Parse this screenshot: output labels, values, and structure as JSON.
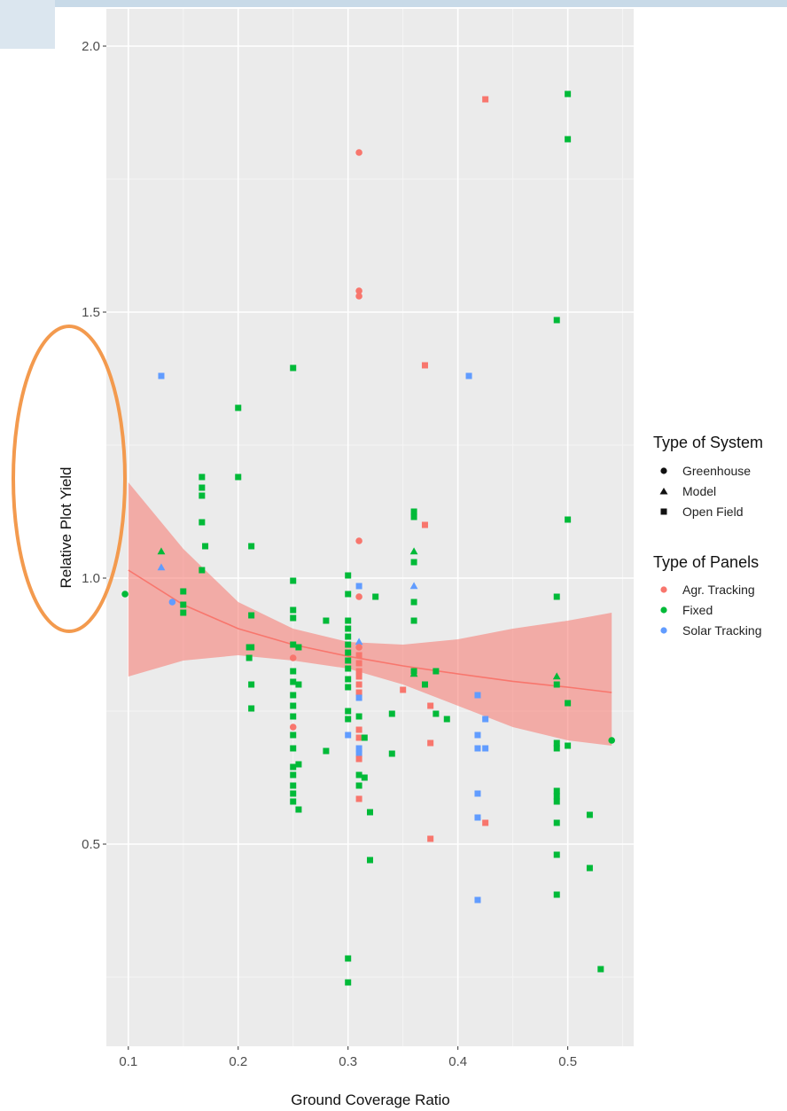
{
  "chart_data": {
    "type": "scatter",
    "xlabel": "Ground Coverage Ratio",
    "ylabel": "Relative Plot Yield",
    "xlim": [
      0.08,
      0.56
    ],
    "ylim": [
      0.12,
      2.07
    ],
    "x_ticks": [
      0.1,
      0.2,
      0.3,
      0.4,
      0.5
    ],
    "y_ticks": [
      0.5,
      1.0,
      1.5,
      2.0
    ],
    "x_tick_labels": [
      "0.1",
      "0.2",
      "0.3",
      "0.4",
      "0.5"
    ],
    "y_tick_labels": [
      "0.5",
      "1.0",
      "1.5",
      "2.0"
    ],
    "grid": true,
    "legend_position": "right",
    "legend_shape": {
      "title": "Type of System",
      "items": [
        {
          "label": "Greenhouse",
          "shape": "circle"
        },
        {
          "label": "Model",
          "shape": "triangle"
        },
        {
          "label": "Open Field",
          "shape": "square"
        }
      ]
    },
    "legend_color": {
      "title": "Type of Panels",
      "items": [
        {
          "label": "Agr. Tracking",
          "color": "#f8766d"
        },
        {
          "label": "Fixed",
          "color": "#00ba38"
        },
        {
          "label": "Solar Tracking",
          "color": "#619cff"
        }
      ]
    },
    "colors": {
      "Agr. Tracking": "#f8766d",
      "Fixed": "#00ba38",
      "Solar Tracking": "#619cff"
    },
    "fit": {
      "line_color": "#f8766d",
      "band_color": "#f8766d",
      "x": [
        0.1,
        0.15,
        0.2,
        0.25,
        0.3,
        0.35,
        0.4,
        0.45,
        0.5,
        0.54
      ],
      "y": [
        1.015,
        0.95,
        0.905,
        0.875,
        0.853,
        0.835,
        0.82,
        0.806,
        0.795,
        0.785
      ],
      "lower": [
        0.815,
        0.845,
        0.855,
        0.845,
        0.83,
        0.8,
        0.76,
        0.72,
        0.695,
        0.685
      ],
      "upper": [
        1.18,
        1.055,
        0.955,
        0.905,
        0.88,
        0.875,
        0.885,
        0.905,
        0.92,
        0.935
      ]
    },
    "points": [
      {
        "x": 0.097,
        "y": 0.97,
        "shape": "circle",
        "panel": "Fixed"
      },
      {
        "x": 0.13,
        "y": 1.05,
        "shape": "triangle",
        "panel": "Fixed"
      },
      {
        "x": 0.13,
        "y": 1.02,
        "shape": "triangle",
        "panel": "Solar Tracking"
      },
      {
        "x": 0.13,
        "y": 1.38,
        "shape": "square",
        "panel": "Solar Tracking"
      },
      {
        "x": 0.14,
        "y": 0.955,
        "shape": "circle",
        "panel": "Solar Tracking"
      },
      {
        "x": 0.15,
        "y": 0.975,
        "shape": "square",
        "panel": "Fixed"
      },
      {
        "x": 0.15,
        "y": 0.95,
        "shape": "square",
        "panel": "Fixed"
      },
      {
        "x": 0.15,
        "y": 0.935,
        "shape": "square",
        "panel": "Fixed"
      },
      {
        "x": 0.167,
        "y": 1.19,
        "shape": "square",
        "panel": "Fixed"
      },
      {
        "x": 0.167,
        "y": 1.17,
        "shape": "square",
        "panel": "Fixed"
      },
      {
        "x": 0.167,
        "y": 1.155,
        "shape": "square",
        "panel": "Fixed"
      },
      {
        "x": 0.167,
        "y": 1.105,
        "shape": "square",
        "panel": "Fixed"
      },
      {
        "x": 0.167,
        "y": 1.015,
        "shape": "square",
        "panel": "Fixed"
      },
      {
        "x": 0.17,
        "y": 1.06,
        "shape": "square",
        "panel": "Fixed"
      },
      {
        "x": 0.2,
        "y": 1.32,
        "shape": "square",
        "panel": "Fixed"
      },
      {
        "x": 0.2,
        "y": 1.19,
        "shape": "square",
        "panel": "Fixed"
      },
      {
        "x": 0.21,
        "y": 0.87,
        "shape": "square",
        "panel": "Fixed"
      },
      {
        "x": 0.21,
        "y": 0.85,
        "shape": "square",
        "panel": "Fixed"
      },
      {
        "x": 0.212,
        "y": 1.06,
        "shape": "square",
        "panel": "Fixed"
      },
      {
        "x": 0.212,
        "y": 0.93,
        "shape": "square",
        "panel": "Fixed"
      },
      {
        "x": 0.212,
        "y": 0.87,
        "shape": "square",
        "panel": "Fixed"
      },
      {
        "x": 0.212,
        "y": 0.8,
        "shape": "square",
        "panel": "Fixed"
      },
      {
        "x": 0.212,
        "y": 0.755,
        "shape": "square",
        "panel": "Fixed"
      },
      {
        "x": 0.25,
        "y": 1.395,
        "shape": "square",
        "panel": "Fixed"
      },
      {
        "x": 0.25,
        "y": 0.995,
        "shape": "square",
        "panel": "Fixed"
      },
      {
        "x": 0.25,
        "y": 0.94,
        "shape": "square",
        "panel": "Fixed"
      },
      {
        "x": 0.25,
        "y": 0.925,
        "shape": "square",
        "panel": "Fixed"
      },
      {
        "x": 0.25,
        "y": 0.875,
        "shape": "square",
        "panel": "Fixed"
      },
      {
        "x": 0.25,
        "y": 0.85,
        "shape": "circle",
        "panel": "Agr. Tracking"
      },
      {
        "x": 0.25,
        "y": 0.825,
        "shape": "square",
        "panel": "Fixed"
      },
      {
        "x": 0.25,
        "y": 0.805,
        "shape": "square",
        "panel": "Fixed"
      },
      {
        "x": 0.25,
        "y": 0.78,
        "shape": "square",
        "panel": "Fixed"
      },
      {
        "x": 0.25,
        "y": 0.76,
        "shape": "square",
        "panel": "Fixed"
      },
      {
        "x": 0.25,
        "y": 0.74,
        "shape": "square",
        "panel": "Fixed"
      },
      {
        "x": 0.25,
        "y": 0.72,
        "shape": "circle",
        "panel": "Agr. Tracking"
      },
      {
        "x": 0.25,
        "y": 0.705,
        "shape": "square",
        "panel": "Fixed"
      },
      {
        "x": 0.25,
        "y": 0.68,
        "shape": "square",
        "panel": "Fixed"
      },
      {
        "x": 0.25,
        "y": 0.645,
        "shape": "square",
        "panel": "Fixed"
      },
      {
        "x": 0.25,
        "y": 0.63,
        "shape": "square",
        "panel": "Fixed"
      },
      {
        "x": 0.25,
        "y": 0.61,
        "shape": "square",
        "panel": "Fixed"
      },
      {
        "x": 0.25,
        "y": 0.595,
        "shape": "square",
        "panel": "Fixed"
      },
      {
        "x": 0.25,
        "y": 0.58,
        "shape": "square",
        "panel": "Fixed"
      },
      {
        "x": 0.255,
        "y": 0.87,
        "shape": "square",
        "panel": "Fixed"
      },
      {
        "x": 0.255,
        "y": 0.8,
        "shape": "square",
        "panel": "Fixed"
      },
      {
        "x": 0.255,
        "y": 0.65,
        "shape": "square",
        "panel": "Fixed"
      },
      {
        "x": 0.255,
        "y": 0.565,
        "shape": "square",
        "panel": "Fixed"
      },
      {
        "x": 0.28,
        "y": 0.92,
        "shape": "square",
        "panel": "Fixed"
      },
      {
        "x": 0.28,
        "y": 0.675,
        "shape": "square",
        "panel": "Fixed"
      },
      {
        "x": 0.3,
        "y": 1.005,
        "shape": "square",
        "panel": "Fixed"
      },
      {
        "x": 0.3,
        "y": 0.97,
        "shape": "square",
        "panel": "Fixed"
      },
      {
        "x": 0.3,
        "y": 0.92,
        "shape": "square",
        "panel": "Fixed"
      },
      {
        "x": 0.3,
        "y": 0.905,
        "shape": "square",
        "panel": "Fixed"
      },
      {
        "x": 0.3,
        "y": 0.89,
        "shape": "square",
        "panel": "Fixed"
      },
      {
        "x": 0.3,
        "y": 0.875,
        "shape": "square",
        "panel": "Fixed"
      },
      {
        "x": 0.3,
        "y": 0.86,
        "shape": "square",
        "panel": "Fixed"
      },
      {
        "x": 0.3,
        "y": 0.845,
        "shape": "square",
        "panel": "Fixed"
      },
      {
        "x": 0.3,
        "y": 0.83,
        "shape": "square",
        "panel": "Fixed"
      },
      {
        "x": 0.3,
        "y": 0.81,
        "shape": "square",
        "panel": "Fixed"
      },
      {
        "x": 0.3,
        "y": 0.795,
        "shape": "square",
        "panel": "Fixed"
      },
      {
        "x": 0.3,
        "y": 0.75,
        "shape": "square",
        "panel": "Fixed"
      },
      {
        "x": 0.3,
        "y": 0.735,
        "shape": "square",
        "panel": "Fixed"
      },
      {
        "x": 0.3,
        "y": 0.705,
        "shape": "square",
        "panel": "Solar Tracking"
      },
      {
        "x": 0.3,
        "y": 0.285,
        "shape": "square",
        "panel": "Fixed"
      },
      {
        "x": 0.3,
        "y": 0.24,
        "shape": "square",
        "panel": "Fixed"
      },
      {
        "x": 0.31,
        "y": 1.8,
        "shape": "circle",
        "panel": "Agr. Tracking"
      },
      {
        "x": 0.31,
        "y": 1.54,
        "shape": "circle",
        "panel": "Agr. Tracking"
      },
      {
        "x": 0.31,
        "y": 1.53,
        "shape": "circle",
        "panel": "Agr. Tracking"
      },
      {
        "x": 0.31,
        "y": 1.07,
        "shape": "circle",
        "panel": "Agr. Tracking"
      },
      {
        "x": 0.31,
        "y": 0.985,
        "shape": "square",
        "panel": "Solar Tracking"
      },
      {
        "x": 0.31,
        "y": 0.965,
        "shape": "circle",
        "panel": "Agr. Tracking"
      },
      {
        "x": 0.31,
        "y": 0.88,
        "shape": "triangle",
        "panel": "Solar Tracking"
      },
      {
        "x": 0.31,
        "y": 0.87,
        "shape": "circle",
        "panel": "Agr. Tracking"
      },
      {
        "x": 0.31,
        "y": 0.855,
        "shape": "square",
        "panel": "Agr. Tracking"
      },
      {
        "x": 0.31,
        "y": 0.84,
        "shape": "square",
        "panel": "Agr. Tracking"
      },
      {
        "x": 0.31,
        "y": 0.825,
        "shape": "square",
        "panel": "Agr. Tracking"
      },
      {
        "x": 0.31,
        "y": 0.815,
        "shape": "square",
        "panel": "Agr. Tracking"
      },
      {
        "x": 0.31,
        "y": 0.8,
        "shape": "square",
        "panel": "Agr. Tracking"
      },
      {
        "x": 0.31,
        "y": 0.785,
        "shape": "square",
        "panel": "Agr. Tracking"
      },
      {
        "x": 0.31,
        "y": 0.775,
        "shape": "square",
        "panel": "Solar Tracking"
      },
      {
        "x": 0.31,
        "y": 0.74,
        "shape": "square",
        "panel": "Fixed"
      },
      {
        "x": 0.31,
        "y": 0.715,
        "shape": "square",
        "panel": "Agr. Tracking"
      },
      {
        "x": 0.31,
        "y": 0.7,
        "shape": "square",
        "panel": "Agr. Tracking"
      },
      {
        "x": 0.31,
        "y": 0.68,
        "shape": "square",
        "panel": "Solar Tracking"
      },
      {
        "x": 0.31,
        "y": 0.67,
        "shape": "square",
        "panel": "Solar Tracking"
      },
      {
        "x": 0.31,
        "y": 0.66,
        "shape": "square",
        "panel": "Agr. Tracking"
      },
      {
        "x": 0.31,
        "y": 0.63,
        "shape": "square",
        "panel": "Fixed"
      },
      {
        "x": 0.31,
        "y": 0.61,
        "shape": "square",
        "panel": "Fixed"
      },
      {
        "x": 0.31,
        "y": 0.585,
        "shape": "square",
        "panel": "Agr. Tracking"
      },
      {
        "x": 0.315,
        "y": 0.7,
        "shape": "square",
        "panel": "Fixed"
      },
      {
        "x": 0.315,
        "y": 0.625,
        "shape": "square",
        "panel": "Fixed"
      },
      {
        "x": 0.32,
        "y": 0.56,
        "shape": "square",
        "panel": "Fixed"
      },
      {
        "x": 0.32,
        "y": 0.47,
        "shape": "square",
        "panel": "Fixed"
      },
      {
        "x": 0.325,
        "y": 0.965,
        "shape": "square",
        "panel": "Fixed"
      },
      {
        "x": 0.34,
        "y": 0.745,
        "shape": "square",
        "panel": "Fixed"
      },
      {
        "x": 0.34,
        "y": 0.67,
        "shape": "square",
        "panel": "Fixed"
      },
      {
        "x": 0.35,
        "y": 0.79,
        "shape": "square",
        "panel": "Agr. Tracking"
      },
      {
        "x": 0.36,
        "y": 1.125,
        "shape": "square",
        "panel": "Fixed"
      },
      {
        "x": 0.36,
        "y": 1.115,
        "shape": "square",
        "panel": "Fixed"
      },
      {
        "x": 0.36,
        "y": 1.05,
        "shape": "triangle",
        "panel": "Fixed"
      },
      {
        "x": 0.36,
        "y": 1.03,
        "shape": "square",
        "panel": "Fixed"
      },
      {
        "x": 0.36,
        "y": 0.985,
        "shape": "triangle",
        "panel": "Solar Tracking"
      },
      {
        "x": 0.36,
        "y": 0.955,
        "shape": "square",
        "panel": "Fixed"
      },
      {
        "x": 0.36,
        "y": 0.92,
        "shape": "square",
        "panel": "Fixed"
      },
      {
        "x": 0.36,
        "y": 0.825,
        "shape": "square",
        "panel": "Fixed"
      },
      {
        "x": 0.36,
        "y": 0.82,
        "shape": "triangle",
        "panel": "Fixed"
      },
      {
        "x": 0.37,
        "y": 1.4,
        "shape": "square",
        "panel": "Agr. Tracking"
      },
      {
        "x": 0.37,
        "y": 1.1,
        "shape": "square",
        "panel": "Agr. Tracking"
      },
      {
        "x": 0.37,
        "y": 0.8,
        "shape": "square",
        "panel": "Fixed"
      },
      {
        "x": 0.375,
        "y": 0.76,
        "shape": "square",
        "panel": "Agr. Tracking"
      },
      {
        "x": 0.375,
        "y": 0.69,
        "shape": "square",
        "panel": "Agr. Tracking"
      },
      {
        "x": 0.375,
        "y": 0.51,
        "shape": "square",
        "panel": "Agr. Tracking"
      },
      {
        "x": 0.38,
        "y": 0.825,
        "shape": "square",
        "panel": "Fixed"
      },
      {
        "x": 0.38,
        "y": 0.745,
        "shape": "square",
        "panel": "Fixed"
      },
      {
        "x": 0.39,
        "y": 0.735,
        "shape": "square",
        "panel": "Fixed"
      },
      {
        "x": 0.41,
        "y": 1.38,
        "shape": "square",
        "panel": "Solar Tracking"
      },
      {
        "x": 0.418,
        "y": 0.78,
        "shape": "square",
        "panel": "Solar Tracking"
      },
      {
        "x": 0.418,
        "y": 0.705,
        "shape": "square",
        "panel": "Solar Tracking"
      },
      {
        "x": 0.418,
        "y": 0.68,
        "shape": "square",
        "panel": "Solar Tracking"
      },
      {
        "x": 0.418,
        "y": 0.595,
        "shape": "square",
        "panel": "Solar Tracking"
      },
      {
        "x": 0.418,
        "y": 0.55,
        "shape": "square",
        "panel": "Solar Tracking"
      },
      {
        "x": 0.418,
        "y": 0.395,
        "shape": "square",
        "panel": "Solar Tracking"
      },
      {
        "x": 0.425,
        "y": 1.9,
        "shape": "square",
        "panel": "Agr. Tracking"
      },
      {
        "x": 0.425,
        "y": 0.735,
        "shape": "square",
        "panel": "Solar Tracking"
      },
      {
        "x": 0.425,
        "y": 0.68,
        "shape": "square",
        "panel": "Solar Tracking"
      },
      {
        "x": 0.425,
        "y": 0.54,
        "shape": "square",
        "panel": "Agr. Tracking"
      },
      {
        "x": 0.49,
        "y": 1.485,
        "shape": "square",
        "panel": "Fixed"
      },
      {
        "x": 0.49,
        "y": 0.965,
        "shape": "square",
        "panel": "Fixed"
      },
      {
        "x": 0.49,
        "y": 0.815,
        "shape": "triangle",
        "panel": "Fixed"
      },
      {
        "x": 0.49,
        "y": 0.8,
        "shape": "square",
        "panel": "Fixed"
      },
      {
        "x": 0.49,
        "y": 0.69,
        "shape": "square",
        "panel": "Fixed"
      },
      {
        "x": 0.49,
        "y": 0.68,
        "shape": "square",
        "panel": "Fixed"
      },
      {
        "x": 0.49,
        "y": 0.6,
        "shape": "square",
        "panel": "Fixed"
      },
      {
        "x": 0.49,
        "y": 0.59,
        "shape": "square",
        "panel": "Fixed"
      },
      {
        "x": 0.49,
        "y": 0.58,
        "shape": "square",
        "panel": "Fixed"
      },
      {
        "x": 0.49,
        "y": 0.54,
        "shape": "square",
        "panel": "Fixed"
      },
      {
        "x": 0.49,
        "y": 0.48,
        "shape": "square",
        "panel": "Fixed"
      },
      {
        "x": 0.49,
        "y": 0.405,
        "shape": "square",
        "panel": "Fixed"
      },
      {
        "x": 0.5,
        "y": 1.91,
        "shape": "square",
        "panel": "Fixed"
      },
      {
        "x": 0.5,
        "y": 1.825,
        "shape": "square",
        "panel": "Fixed"
      },
      {
        "x": 0.5,
        "y": 1.11,
        "shape": "square",
        "panel": "Fixed"
      },
      {
        "x": 0.5,
        "y": 0.765,
        "shape": "square",
        "panel": "Fixed"
      },
      {
        "x": 0.5,
        "y": 0.685,
        "shape": "square",
        "panel": "Fixed"
      },
      {
        "x": 0.52,
        "y": 0.555,
        "shape": "square",
        "panel": "Fixed"
      },
      {
        "x": 0.52,
        "y": 0.455,
        "shape": "square",
        "panel": "Fixed"
      },
      {
        "x": 0.53,
        "y": 0.265,
        "shape": "square",
        "panel": "Fixed"
      },
      {
        "x": 0.54,
        "y": 0.695,
        "shape": "circle",
        "panel": "Fixed"
      }
    ]
  },
  "annotation": {
    "color": "#f39a4e"
  }
}
